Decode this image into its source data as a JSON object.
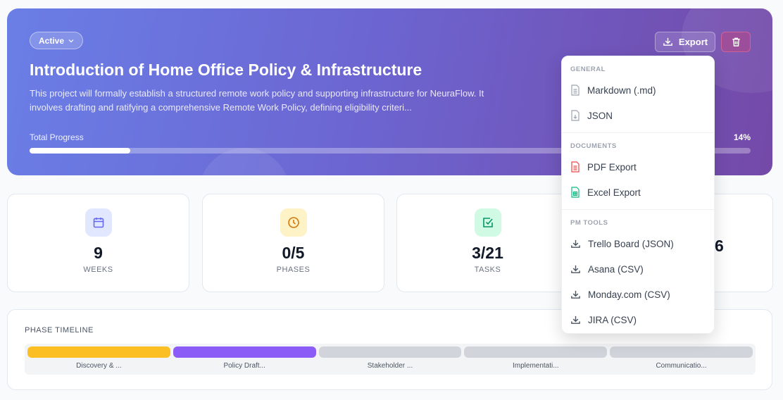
{
  "header": {
    "status": "Active",
    "title": "Introduction of Home Office Policy & Infrastructure",
    "description": "This project will formally establish a structured remote work policy and supporting infrastructure for NeuraFlow. It involves drafting and ratifying a comprehensive Remote Work Policy, defining eligibility criteri...",
    "progress_label": "Total Progress",
    "progress_text": "14%",
    "progress": 14,
    "export_label": "Export"
  },
  "stats": [
    {
      "value": "9",
      "label": "WEEKS",
      "icon": "calendar-icon",
      "color": "#6366f1",
      "bg": "#e0e7ff"
    },
    {
      "value": "0/5",
      "label": "PHASES",
      "icon": "clock-icon",
      "color": "#d97706",
      "bg": "#fef3c7"
    },
    {
      "value": "3/21",
      "label": "TASKS",
      "icon": "check-square-icon",
      "color": "#059669",
      "bg": "#d1fae5"
    },
    {
      "value": "6",
      "label": ""
    }
  ],
  "timeline": {
    "title": "PHASE TIMELINE",
    "phases": [
      {
        "label": "Discovery & ...",
        "color": "#fbbf24"
      },
      {
        "label": "Policy Draft...",
        "color": "#8b5cf6"
      },
      {
        "label": "Stakeholder ...",
        "color": "#d1d5db"
      },
      {
        "label": "Implementati...",
        "color": "#d1d5db"
      },
      {
        "label": "Communicatio...",
        "color": "#d1d5db"
      }
    ]
  },
  "export_menu": {
    "sections": [
      {
        "title": "GENERAL",
        "items": [
          "Markdown (.md)",
          "JSON"
        ]
      },
      {
        "title": "DOCUMENTS",
        "items": [
          "PDF Export",
          "Excel Export"
        ]
      },
      {
        "title": "PM TOOLS",
        "items": [
          "Trello Board (JSON)",
          "Asana (CSV)",
          "Monday.com (CSV)",
          "JIRA (CSV)"
        ]
      }
    ]
  }
}
